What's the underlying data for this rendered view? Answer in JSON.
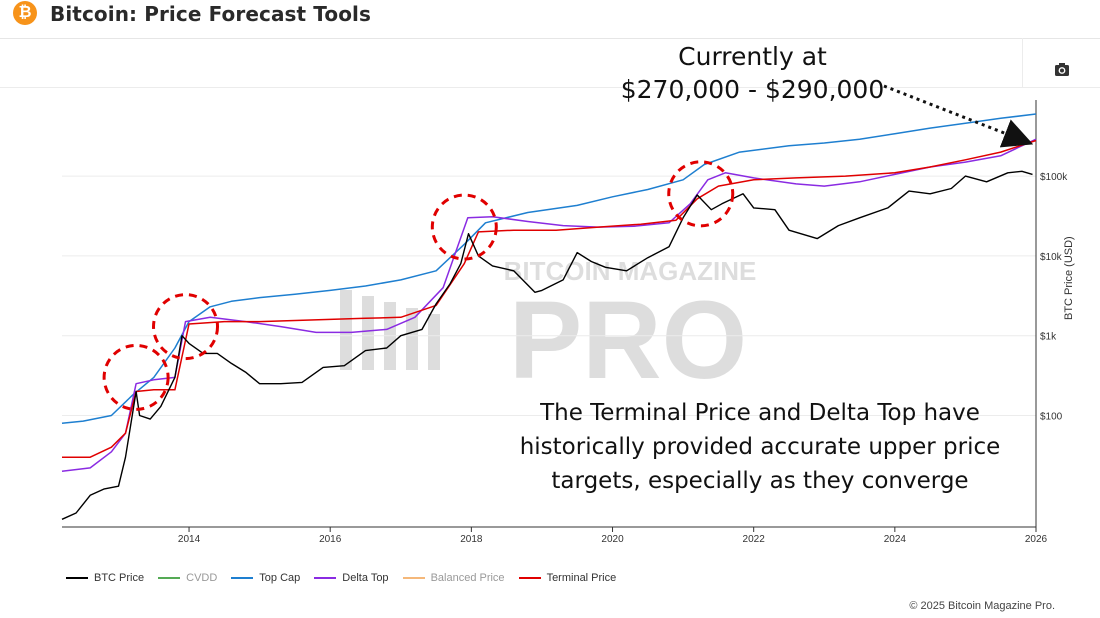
{
  "header": {
    "logo_glyph": "₿",
    "title": "Bitcoin: Price Forecast Tools"
  },
  "toolbar": {
    "camera_icon": "camera-icon"
  },
  "annotations": {
    "top_line1": "Currently at",
    "top_line2": "$270,000 - $290,000",
    "bottom_line1": "The Terminal Price and Delta Top have",
    "bottom_line2": "historically provided accurate upper price",
    "bottom_line3": "targets, especially as they converge"
  },
  "watermark": {
    "line1": "BITCOIN MAGAZINE",
    "line2": "PRO"
  },
  "footer": {
    "copyright": "© 2025 Bitcoin Magazine Pro."
  },
  "colors": {
    "btc_price": "#000000",
    "cvdd": "#55aa55",
    "top_cap": "#1e7fd0",
    "delta_top": "#8a2be2",
    "balanced_price": "#f5b87a",
    "terminal_price": "#e00000",
    "circle": "#e00000"
  },
  "chart_data": {
    "type": "line",
    "title": "Bitcoin: Price Forecast Tools",
    "xlabel": "",
    "ylabel": "BTC Price (USD)",
    "y_scale": "log",
    "xlim": [
      2012.2,
      2026.0
    ],
    "ylim": [
      4,
      900000
    ],
    "x_ticks": [
      2014,
      2016,
      2018,
      2020,
      2022,
      2024,
      2026
    ],
    "x_tick_labels": [
      "2014",
      "2016",
      "2018",
      "2020",
      "2022",
      "2024",
      "2026"
    ],
    "y_ticks": [
      100,
      1000,
      10000,
      100000
    ],
    "y_tick_labels": [
      "$100",
      "$1k",
      "$10k",
      "$100k"
    ],
    "legend": [
      "BTC Price",
      "CVDD",
      "Top Cap",
      "Delta Top",
      "Balanced Price",
      "Terminal Price"
    ],
    "legend_placement": "bottom-left",
    "series": [
      {
        "name": "BTC Price",
        "x": [
          2012.2,
          2012.4,
          2012.6,
          2012.8,
          2013.0,
          2013.1,
          2013.25,
          2013.3,
          2013.45,
          2013.6,
          2013.8,
          2013.9,
          2014.0,
          2014.2,
          2014.4,
          2014.6,
          2014.8,
          2015.0,
          2015.3,
          2015.6,
          2015.9,
          2016.2,
          2016.5,
          2016.8,
          2017.0,
          2017.3,
          2017.5,
          2017.7,
          2017.85,
          2017.96,
          2018.1,
          2018.3,
          2018.6,
          2018.9,
          2019.0,
          2019.3,
          2019.5,
          2019.7,
          2019.9,
          2020.2,
          2020.5,
          2020.8,
          2021.0,
          2021.2,
          2021.4,
          2021.55,
          2021.85,
          2022.0,
          2022.3,
          2022.5,
          2022.9,
          2023.2,
          2023.5,
          2023.9,
          2024.2,
          2024.5,
          2024.8,
          2025.0,
          2025.3,
          2025.6,
          2025.8,
          2025.95
        ],
        "values": [
          5,
          6,
          10,
          12,
          13,
          30,
          200,
          100,
          90,
          130,
          300,
          1000,
          800,
          600,
          600,
          450,
          350,
          250,
          250,
          260,
          400,
          420,
          650,
          700,
          1000,
          1200,
          2500,
          4500,
          8000,
          19000,
          10000,
          7500,
          6500,
          3500,
          3700,
          5000,
          11000,
          8500,
          7200,
          6500,
          9500,
          13000,
          30000,
          58000,
          38000,
          45000,
          60000,
          40000,
          38000,
          21000,
          16500,
          24000,
          30000,
          40000,
          65000,
          60000,
          70000,
          100000,
          85000,
          110000,
          115000,
          105000
        ]
      },
      {
        "name": "Top Cap",
        "x": [
          2012.2,
          2012.5,
          2012.9,
          2013.2,
          2013.5,
          2013.8,
          2014.0,
          2014.3,
          2014.6,
          2015.0,
          2015.5,
          2016.0,
          2016.5,
          2017.0,
          2017.5,
          2017.9,
          2018.2,
          2018.8,
          2019.5,
          2020.0,
          2020.5,
          2021.0,
          2021.3,
          2021.8,
          2022.5,
          2023.0,
          2023.5,
          2024.0,
          2024.5,
          2025.0,
          2025.5,
          2026.0
        ],
        "values": [
          80,
          85,
          100,
          180,
          300,
          700,
          1500,
          2300,
          2700,
          3000,
          3300,
          3700,
          4200,
          5000,
          6500,
          14000,
          26000,
          35000,
          43000,
          55000,
          68000,
          90000,
          140000,
          200000,
          240000,
          260000,
          290000,
          340000,
          400000,
          460000,
          530000,
          600000
        ]
      },
      {
        "name": "Delta Top",
        "x": [
          2012.2,
          2012.6,
          2012.9,
          2013.1,
          2013.25,
          2013.5,
          2013.8,
          2013.95,
          2014.3,
          2014.8,
          2015.3,
          2015.8,
          2016.3,
          2016.8,
          2017.2,
          2017.6,
          2017.95,
          2018.3,
          2018.8,
          2019.3,
          2019.8,
          2020.3,
          2020.8,
          2021.1,
          2021.35,
          2021.6,
          2022.0,
          2022.6,
          2023.0,
          2023.5,
          2024.0,
          2024.5,
          2025.0,
          2025.5,
          2026.0
        ],
        "values": [
          20,
          22,
          35,
          60,
          250,
          280,
          300,
          1500,
          1700,
          1500,
          1300,
          1100,
          1100,
          1200,
          1700,
          4000,
          30000,
          31000,
          27000,
          24000,
          23000,
          23500,
          26000,
          45000,
          90000,
          110000,
          95000,
          80000,
          75000,
          85000,
          105000,
          130000,
          150000,
          180000,
          290000
        ]
      },
      {
        "name": "Terminal Price",
        "x": [
          2012.2,
          2012.6,
          2012.9,
          2013.1,
          2013.25,
          2013.5,
          2013.8,
          2014.0,
          2014.5,
          2015.0,
          2015.5,
          2016.0,
          2016.5,
          2017.0,
          2017.5,
          2017.9,
          2018.1,
          2018.6,
          2019.2,
          2019.8,
          2020.4,
          2020.9,
          2021.2,
          2021.5,
          2022.0,
          2022.6,
          2023.3,
          2024.0,
          2024.5,
          2025.0,
          2025.5,
          2026.0
        ],
        "values": [
          30,
          30,
          40,
          60,
          200,
          210,
          210,
          1400,
          1500,
          1500,
          1550,
          1600,
          1650,
          1700,
          2400,
          8000,
          20000,
          21000,
          21000,
          23000,
          25000,
          28000,
          52000,
          75000,
          90000,
          95000,
          100000,
          110000,
          130000,
          160000,
          200000,
          280000
        ]
      },
      {
        "name": "CVDD",
        "x": [],
        "values": []
      },
      {
        "name": "Balanced Price",
        "x": [],
        "values": []
      }
    ],
    "highlight_circles": [
      {
        "x": 2013.25,
        "y": 300,
        "label": ""
      },
      {
        "x": 2013.95,
        "y": 1300,
        "label": ""
      },
      {
        "x": 2017.9,
        "y": 23000,
        "label": ""
      },
      {
        "x": 2021.25,
        "y": 60000,
        "label": ""
      }
    ]
  }
}
